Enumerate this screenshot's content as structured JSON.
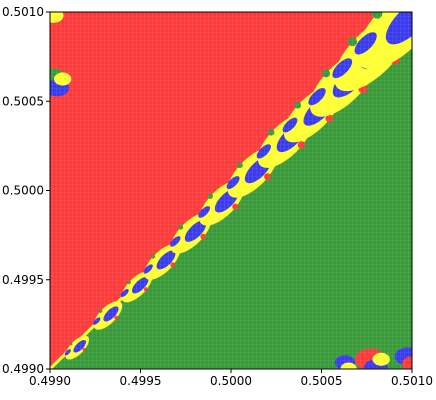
{
  "chart_data": {
    "type": "heatmap",
    "title": "",
    "xlabel": "",
    "ylabel": "",
    "xlim": [
      0.499,
      0.501
    ],
    "ylim": [
      0.499,
      0.501
    ],
    "x_ticks": [
      "0.4990",
      "0.4995",
      "0.5000",
      "0.5005",
      "0.5010"
    ],
    "y_ticks": [
      "0.4990",
      "0.4995",
      "0.5000",
      "0.5005",
      "0.5010"
    ],
    "grid": false,
    "legend": "none",
    "categories": [
      {
        "key": "red",
        "color": "#ff3a3a"
      },
      {
        "key": "green",
        "color": "#3a9a3a"
      },
      {
        "key": "blue",
        "color": "#3a3aee"
      },
      {
        "key": "yellow",
        "color": "#ffff33"
      }
    ],
    "regions": {
      "upper_left_triangle": "red",
      "lower_right_triangle": "green",
      "diagonal_boundary": [
        "yellow",
        "blue",
        "red",
        "green"
      ]
    },
    "diagonal_bulbs": [
      {
        "x": 0.49915,
        "y": 0.49912,
        "size": 0.0001
      },
      {
        "x": 0.49932,
        "y": 0.4993,
        "size": 0.00012
      },
      {
        "x": 0.49948,
        "y": 0.49946,
        "size": 0.00013
      },
      {
        "x": 0.49962,
        "y": 0.4996,
        "size": 0.00015
      },
      {
        "x": 0.49978,
        "y": 0.49976,
        "size": 0.00017
      },
      {
        "x": 0.49995,
        "y": 0.49993,
        "size": 0.00019
      },
      {
        "x": 0.50012,
        "y": 0.5001,
        "size": 0.00021
      },
      {
        "x": 0.5003,
        "y": 0.50028,
        "size": 0.00023
      },
      {
        "x": 0.50045,
        "y": 0.50043,
        "size": 0.00024
      },
      {
        "x": 0.50062,
        "y": 0.5006,
        "size": 0.00028
      },
      {
        "x": 0.50078,
        "y": 0.50077,
        "size": 0.00032
      },
      {
        "x": 0.50093,
        "y": 0.50092,
        "size": 0.00036
      }
    ],
    "edge_features": [
      {
        "x": 0.49904,
        "y": 0.5006,
        "size": 0.00012,
        "colors": [
          "green",
          "blue",
          "yellow"
        ]
      },
      {
        "x": 0.49902,
        "y": 0.501,
        "size": 0.0001,
        "colors": [
          "green",
          "yellow"
        ]
      },
      {
        "x": 0.5008,
        "y": 0.49903,
        "size": 0.00012,
        "colors": [
          "red",
          "blue",
          "yellow"
        ]
      },
      {
        "x": 0.50065,
        "y": 0.49902,
        "size": 8e-05,
        "colors": [
          "blue",
          "yellow"
        ]
      },
      {
        "x": 0.501,
        "y": 0.49905,
        "size": 0.0001,
        "colors": [
          "blue",
          "red"
        ]
      }
    ]
  }
}
